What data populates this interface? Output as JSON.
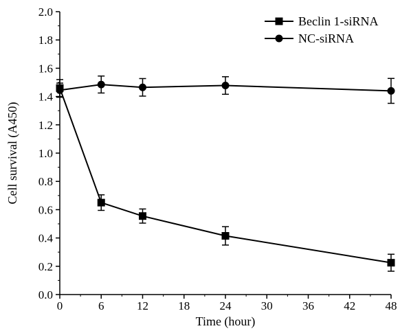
{
  "chart_data": {
    "type": "line",
    "xlabel": "Time (hour)",
    "ylabel": "Cell survival (A450)",
    "xlim": [
      0,
      48
    ],
    "ylim": [
      0,
      2.0
    ],
    "xticks": [
      "0",
      "6",
      "12",
      "18",
      "24",
      "30",
      "36",
      "42",
      "48"
    ],
    "yticks": [
      "0.0",
      "0.2",
      "0.4",
      "0.6",
      "0.8",
      "1.0",
      "1.2",
      "1.4",
      "1.6",
      "1.8",
      "2.0"
    ],
    "grid": false,
    "legend_position": "top-right",
    "series": [
      {
        "name": "Beclin 1-siRNA",
        "marker": "square",
        "color": "#000000",
        "x": [
          0,
          6,
          12,
          24,
          48
        ],
        "y": [
          1.46,
          0.65,
          0.555,
          0.415,
          0.225
        ],
        "error": [
          0.06,
          0.055,
          0.05,
          0.065,
          0.06
        ]
      },
      {
        "name": "NC-siRNA",
        "marker": "circle",
        "color": "#000000",
        "x": [
          0,
          6,
          12,
          24,
          48
        ],
        "y": [
          1.445,
          1.485,
          1.465,
          1.478,
          1.44
        ],
        "error": [
          0.05,
          0.06,
          0.062,
          0.062,
          0.088
        ]
      }
    ]
  }
}
